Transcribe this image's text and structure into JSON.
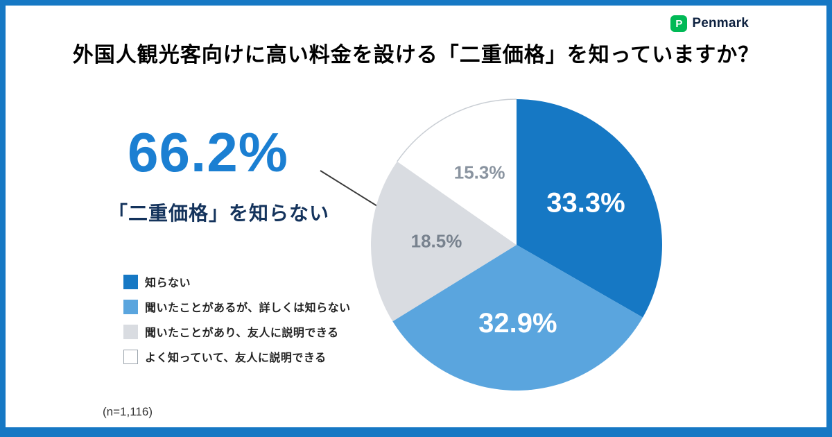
{
  "logo": {
    "text": "Penmark",
    "icon": "penmark-chat-bubble-icon",
    "icon_color": "#00b956",
    "text_color": "#0e2240"
  },
  "title": "外国人観光客向けに高い料金を設ける「二重価格」を知っていますか？",
  "highlight": {
    "value": "66.2%",
    "label": "「二重価格」を知らない",
    "value_color": "#1b7fd2",
    "label_color": "#14335c"
  },
  "sample_note": "(n=1,116)",
  "frame_color": "#1678c4",
  "chart_data": {
    "type": "pie",
    "title": "外国人観光客向けに高い料金を設ける「二重価格」を知っていますか？",
    "start_angle_deg": 0,
    "direction": "clockwise",
    "legend_position": "bottom-left",
    "slices": [
      {
        "label": "知らない",
        "value": 33.3,
        "display": "33.3%",
        "color": "#1678c4",
        "label_color": "#ffffff",
        "label_size": 40
      },
      {
        "label": "聞いたことがあるが、詳しくは知らない",
        "value": 32.9,
        "display": "32.9%",
        "color": "#5aa5de",
        "label_color": "#ffffff",
        "label_size": 40
      },
      {
        "label": "聞いたことがあり、友人に説明できる",
        "value": 18.5,
        "display": "18.5%",
        "color": "#d9dce1",
        "label_color": "#78828e",
        "label_size": 26
      },
      {
        "label": "よく知っていて、友人に説明できる",
        "value": 15.3,
        "display": "15.3%",
        "color": "#ffffff",
        "label_color": "#8a94a0",
        "label_size": 26
      }
    ],
    "highlight_total": {
      "value": 66.2,
      "display": "66.2%",
      "note": "「二重価格」を知らない"
    }
  }
}
